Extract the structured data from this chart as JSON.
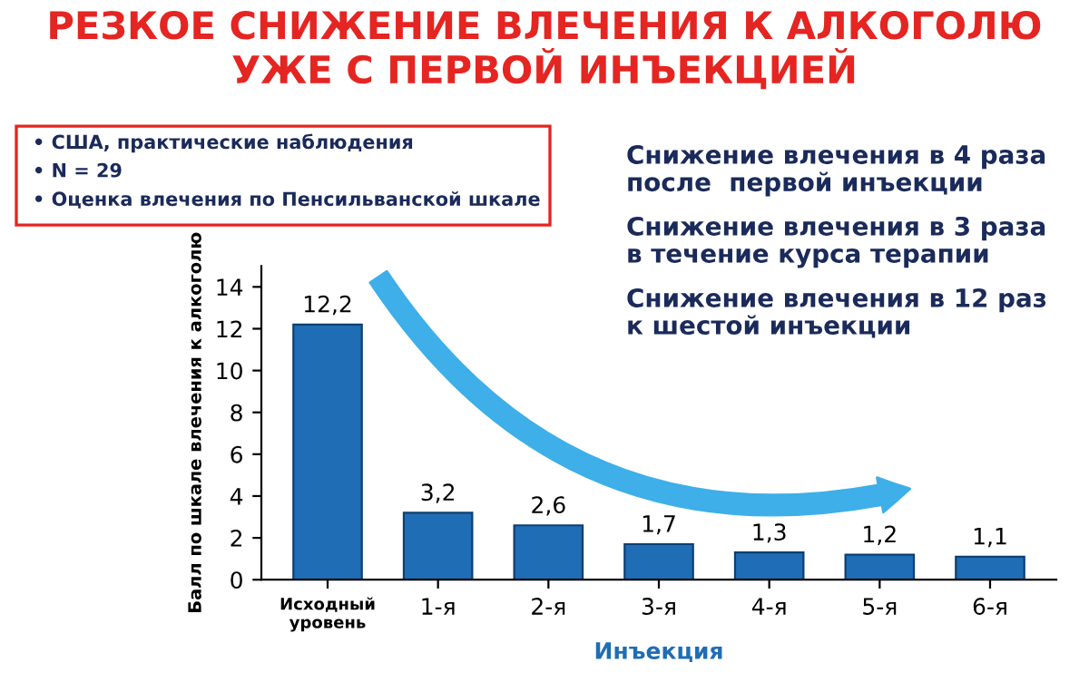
{
  "chart_data": {
    "type": "bar",
    "title": "РЕЗКОЕ СНИЖЕНИЕ ВЛЕЧЕНИЯ К АЛКОГОЛЮ\nУЖЕ С ПЕРВОЙ ИНЪЕКЦИЕЙ",
    "xlabel": "Инъекция",
    "ylabel": "Балл по шкале влечения к алкоголю",
    "categories": [
      "Исходный\nуровень",
      "1-я",
      "2-я",
      "3-я",
      "4-я",
      "5-я",
      "6-я"
    ],
    "values": [
      12.2,
      3.2,
      2.6,
      1.7,
      1.3,
      1.2,
      1.1
    ],
    "value_labels": [
      "12,2",
      "3,2",
      "2,6",
      "1,7",
      "1,3",
      "1,2",
      "1,1"
    ],
    "color": "#1f6db4",
    "ylim": [
      0,
      15
    ],
    "yticks": [
      0,
      2,
      4,
      6,
      8,
      10,
      12,
      14
    ],
    "grid": false,
    "legend": false,
    "annotations": [
      "• США, практические наблюдения",
      "• N = 29",
      "• Оценка влечения по Пенсильванской шкале",
      "Снижение влечения в 4 раза\nпосле  первой инъекции",
      "Снижение влечения в 3 раза\nв течение курса терапии",
      "Снижение влечения в 12 раз\nк шестой инъекции"
    ]
  }
}
